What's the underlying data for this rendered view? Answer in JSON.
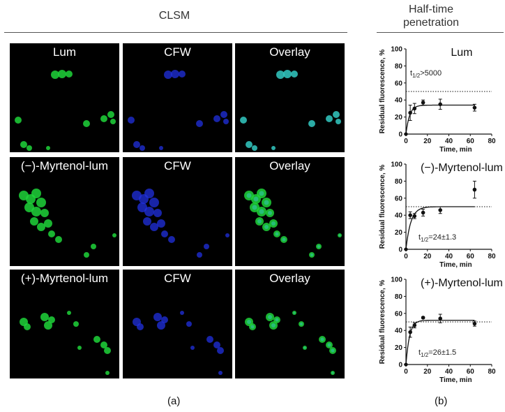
{
  "header": {
    "clsm_title": "CLSM",
    "halftime_title_1": "Half-time",
    "halftime_title_2": "penetration"
  },
  "grid": {
    "rows": [
      {
        "labels": [
          "Lum",
          "CFW",
          "Overlay"
        ]
      },
      {
        "labels": [
          "(−)-Myrtenol-lum",
          "CFW",
          "Overlay"
        ]
      },
      {
        "labels": [
          "(+)-Myrtenol-lum",
          "CFW",
          "Overlay"
        ]
      }
    ]
  },
  "captions": {
    "a": "(a)",
    "b": "(b)"
  },
  "colors": {
    "green": "#1fd33a",
    "blue": "#2030e0",
    "cyan": "#33c9c2",
    "panel_bg": "#000000"
  },
  "chart_data": [
    {
      "type": "scatter",
      "title": "Lum",
      "annotation": "t1/2>5000",
      "ann_main": "t",
      "ann_sub": "1/2",
      "ann_rest": ">5000",
      "xlabel": "Time, min",
      "ylabel": "Residual fluorescence, %",
      "xlim": [
        0,
        80
      ],
      "ylim": [
        0,
        100
      ],
      "xticks": [
        0,
        20,
        40,
        60,
        80
      ],
      "yticks": [
        0,
        20,
        40,
        60,
        80,
        100
      ],
      "reference_line": 50,
      "points": [
        {
          "x": 4,
          "y": 25,
          "err": 9
        },
        {
          "x": 8,
          "y": 30,
          "err": 6
        },
        {
          "x": 16,
          "y": 37,
          "err": 3
        },
        {
          "x": 32,
          "y": 35,
          "err": 6
        },
        {
          "x": 64,
          "y": 31,
          "err": 4
        }
      ],
      "fit": {
        "plateau": 34,
        "k": 0.3
      }
    },
    {
      "type": "scatter",
      "title": "(−)-Myrtenol-lum",
      "annotation": "t1/2=24±1.3",
      "ann_main": "t",
      "ann_sub": "1/2",
      "ann_rest": "=24±1.3",
      "xlabel": "Time, min",
      "ylabel": "Residual fluorescence, %",
      "xlim": [
        0,
        80
      ],
      "ylim": [
        0,
        100
      ],
      "xticks": [
        0,
        20,
        40,
        60,
        80
      ],
      "yticks": [
        0,
        20,
        40,
        60,
        80,
        100
      ],
      "reference_line": 50,
      "points": [
        {
          "x": 4,
          "y": 40,
          "err": 4
        },
        {
          "x": 8,
          "y": 39,
          "err": 3
        },
        {
          "x": 16,
          "y": 43,
          "err": 4
        },
        {
          "x": 32,
          "y": 46,
          "err": 4
        },
        {
          "x": 64,
          "y": 70,
          "err": 10
        }
      ],
      "fit": {
        "plateau": 50,
        "k": 0.22
      }
    },
    {
      "type": "scatter",
      "title": "(+)-Myrtenol-lum",
      "annotation": "t1/2=26±1.5",
      "ann_main": "t",
      "ann_sub": "1/2",
      "ann_rest": "=26±1.5",
      "xlabel": "Time, min",
      "ylabel": "Residual fluorescence, %",
      "xlim": [
        0,
        80
      ],
      "ylim": [
        0,
        100
      ],
      "xticks": [
        0,
        20,
        40,
        60,
        80
      ],
      "yticks": [
        0,
        20,
        40,
        60,
        80,
        100
      ],
      "reference_line": 50,
      "points": [
        {
          "x": 4,
          "y": 38,
          "err": 6
        },
        {
          "x": 8,
          "y": 46,
          "err": 3
        },
        {
          "x": 16,
          "y": 55,
          "err": 1
        },
        {
          "x": 32,
          "y": 54,
          "err": 5
        },
        {
          "x": 64,
          "y": 48,
          "err": 3
        }
      ],
      "fit": {
        "plateau": 52,
        "k": 0.3
      }
    }
  ]
}
